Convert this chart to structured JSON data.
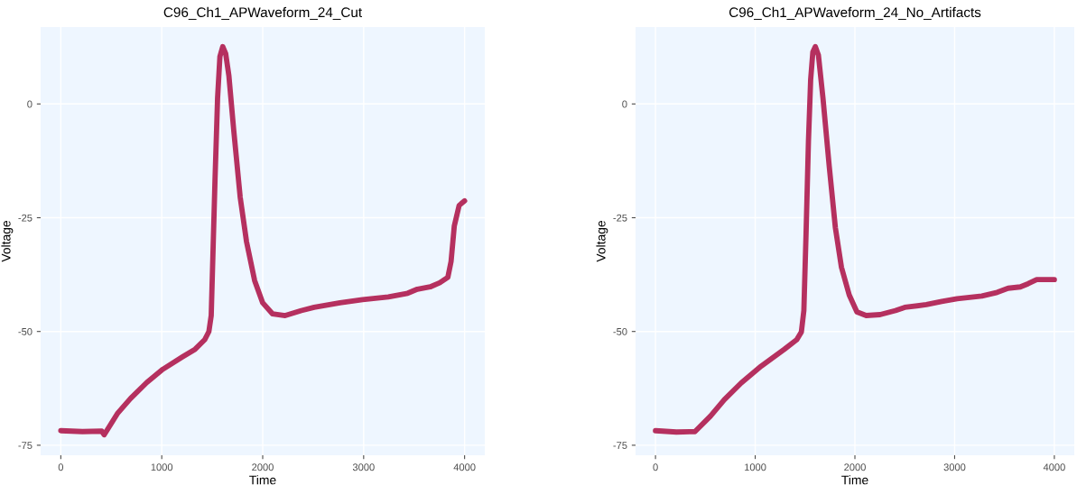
{
  "chart_data": [
    {
      "type": "line",
      "title": "C96_Ch1_APWaveform_24_Cut",
      "xlabel": "Time",
      "ylabel": "Voltage",
      "xlim": [
        -200,
        4200
      ],
      "ylim": [
        -77.2,
        16.9
      ],
      "xticks": [
        0,
        1000,
        2000,
        3000,
        4000
      ],
      "yticks": [
        -75,
        -50,
        -25,
        0
      ],
      "grid": true,
      "legend": false,
      "series": [
        {
          "color": "#b5305f",
          "x": [
            0,
            214,
            405,
            430,
            565,
            692,
            852,
            1011,
            1203,
            1330,
            1426,
            1467,
            1490,
            1506,
            1528,
            1553,
            1576,
            1604,
            1633,
            1665,
            1713,
            1777,
            1840,
            1920,
            2000,
            2096,
            2223,
            2383,
            2510,
            2766,
            2989,
            3244,
            3436,
            3532,
            3659,
            3754,
            3834,
            3866,
            3898,
            3946,
            4000
          ],
          "values": [
            -71.8,
            -72.0,
            -71.9,
            -72.7,
            -67.9,
            -64.7,
            -61.2,
            -58.3,
            -55.6,
            -53.9,
            -51.8,
            -50.0,
            -46.5,
            -33.8,
            -16.3,
            1.3,
            10.4,
            12.6,
            11.1,
            6.2,
            -5.8,
            -20.5,
            -30.3,
            -38.8,
            -43.7,
            -46.1,
            -46.5,
            -45.4,
            -44.7,
            -43.7,
            -43.0,
            -42.4,
            -41.6,
            -40.7,
            -40.2,
            -39.3,
            -38.1,
            -34.6,
            -26.8,
            -22.3,
            -21.3
          ]
        }
      ]
    },
    {
      "type": "line",
      "title": "C96_Ch1_APWaveform_24_No_Artifacts",
      "xlabel": "Time",
      "ylabel": "Voltage",
      "xlim": [
        -200,
        4200
      ],
      "ylim": [
        -77.2,
        16.9
      ],
      "xticks": [
        0,
        1000,
        2000,
        3000,
        4000
      ],
      "yticks": [
        -75,
        -50,
        -25,
        0
      ],
      "grid": true,
      "legend": false,
      "series": [
        {
          "color": "#b5305f",
          "x": [
            0,
            210,
            396,
            551,
            690,
            860,
            1061,
            1293,
            1417,
            1463,
            1488,
            1510,
            1534,
            1556,
            1578,
            1603,
            1634,
            1680,
            1742,
            1804,
            1865,
            1943,
            2020,
            2113,
            2252,
            2407,
            2500,
            2716,
            2871,
            3025,
            3273,
            3427,
            3536,
            3659,
            3737,
            3823,
            4000
          ],
          "values": [
            -71.8,
            -72.1,
            -72.0,
            -68.6,
            -65.0,
            -61.3,
            -57.6,
            -53.9,
            -51.8,
            -50.1,
            -45.4,
            -28.5,
            -8.2,
            5.3,
            11.4,
            12.6,
            10.7,
            1.2,
            -13.6,
            -27.2,
            -35.9,
            -42.0,
            -45.7,
            -46.5,
            -46.3,
            -45.4,
            -44.7,
            -44.1,
            -43.4,
            -42.8,
            -42.2,
            -41.4,
            -40.5,
            -40.2,
            -39.5,
            -38.6,
            -38.6
          ]
        }
      ]
    }
  ]
}
